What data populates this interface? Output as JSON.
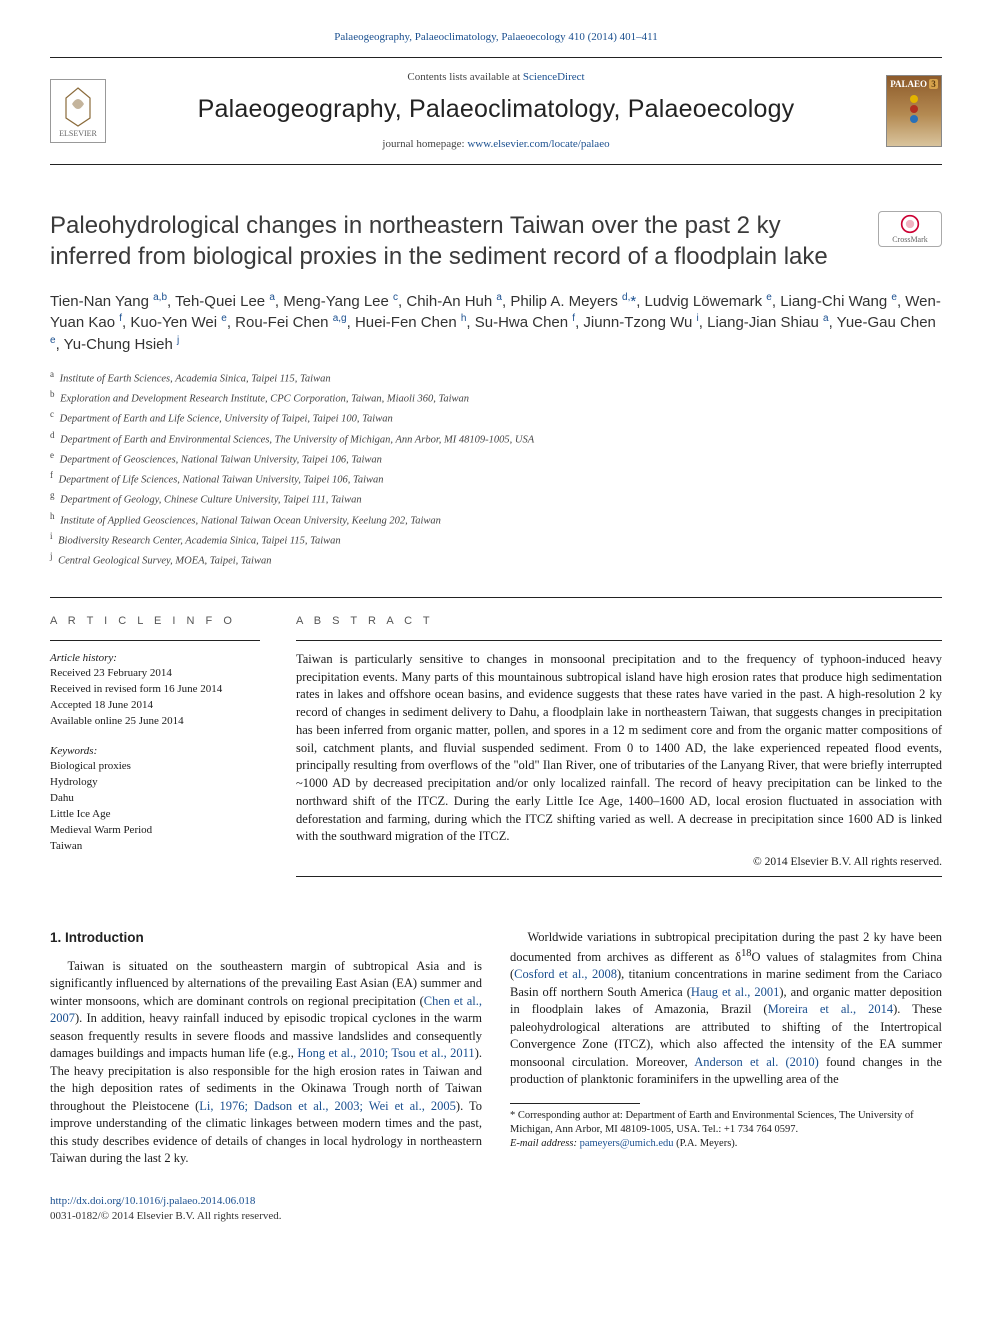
{
  "top_link": {
    "prefix": "",
    "journal": "Palaeogeography, Palaeoclimatology, Palaeoecology 410 (2014) 401–411"
  },
  "header": {
    "contents_label": "Contents lists available at",
    "contents_link": "ScienceDirect",
    "journal_name": "Palaeogeography, Palaeoclimatology, Palaeoecology",
    "home_label": "journal homepage:",
    "home_url": "www.elsevier.com/locate/palaeo",
    "publisher_name": "ELSEVIER",
    "cover_label_top": "PALAEO",
    "cover_label_num": "3",
    "cover_dot_colors": [
      "#e2b400",
      "#b03020",
      "#2970b8"
    ]
  },
  "crossmark_label": "CrossMark",
  "title": "Paleohydrological changes in northeastern Taiwan over the past 2 ky inferred from biological proxies in the sediment record of a floodplain lake",
  "authors_html": "Tien-Nan Yang <sup>a,b</sup>, Teh-Quei Lee <sup>a</sup>, Meng-Yang Lee <sup>c</sup>, Chih-An Huh <sup>a</sup>, Philip A. Meyers <sup>d,</sup><span class='star'>*</span>, Ludvig Löwemark <sup>e</sup>, Liang-Chi Wang <sup>e</sup>, Wen-Yuan Kao <sup>f</sup>, Kuo-Yen Wei <sup>e</sup>, Rou-Fei Chen <sup>a,g</sup>, Huei-Fen Chen <sup>h</sup>, Su-Hwa Chen <sup>f</sup>, Jiunn-Tzong Wu <sup>i</sup>, Liang-Jian Shiau <sup>a</sup>, Yue-Gau Chen <sup>e</sup>, Yu-Chung Hsieh <sup>j</sup>",
  "affiliations": [
    {
      "key": "a",
      "text": "Institute of Earth Sciences, Academia Sinica, Taipei 115, Taiwan"
    },
    {
      "key": "b",
      "text": "Exploration and Development Research Institute, CPC Corporation, Taiwan, Miaoli 360, Taiwan"
    },
    {
      "key": "c",
      "text": "Department of Earth and Life Science, University of Taipei, Taipei 100, Taiwan"
    },
    {
      "key": "d",
      "text": "Department of Earth and Environmental Sciences, The University of Michigan, Ann Arbor, MI 48109-1005, USA"
    },
    {
      "key": "e",
      "text": "Department of Geosciences, National Taiwan University, Taipei 106, Taiwan"
    },
    {
      "key": "f",
      "text": "Department of Life Sciences, National Taiwan University, Taipei 106, Taiwan"
    },
    {
      "key": "g",
      "text": "Department of Geology, Chinese Culture University, Taipei 111, Taiwan"
    },
    {
      "key": "h",
      "text": "Institute of Applied Geosciences, National Taiwan Ocean University, Keelung 202, Taiwan"
    },
    {
      "key": "i",
      "text": "Biodiversity Research Center, Academia Sinica, Taipei 115, Taiwan"
    },
    {
      "key": "j",
      "text": "Central Geological Survey, MOEA, Taipei, Taiwan"
    }
  ],
  "info": {
    "article_info_label": "A R T I C L E  I N F O",
    "abstract_label": "A B S T R A C T",
    "history_label": "Article history:",
    "history": [
      "Received 23 February 2014",
      "Received in revised form 16 June 2014",
      "Accepted 18 June 2014",
      "Available online 25 June 2014"
    ],
    "keywords_label": "Keywords:",
    "keywords": [
      "Biological proxies",
      "Hydrology",
      "Dahu",
      "Little Ice Age",
      "Medieval Warm Period",
      "Taiwan"
    ]
  },
  "abstract": "Taiwan is particularly sensitive to changes in monsoonal precipitation and to the frequency of typhoon-induced heavy precipitation events. Many parts of this mountainous subtropical island have high erosion rates that produce high sedimentation rates in lakes and offshore ocean basins, and evidence suggests that these rates have varied in the past. A high-resolution 2 ky record of changes in sediment delivery to Dahu, a floodplain lake in northeastern Taiwan, that suggests changes in precipitation has been inferred from organic matter, pollen, and spores in a 12 m sediment core and from the organic matter compositions of soil, catchment plants, and fluvial suspended sediment. From 0 to 1400 AD, the lake experienced repeated flood events, principally resulting from overflows of the \"old\" Ilan River, one of tributaries of the Lanyang River, that were briefly interrupted ~1000 AD by decreased precipitation and/or only localized rainfall. The record of heavy precipitation can be linked to the northward shift of the ITCZ. During the early Little Ice Age, 1400–1600 AD, local erosion fluctuated in association with deforestation and farming, during which the ITCZ shifting varied as well. A decrease in precipitation since 1600 AD is linked with the southward migration of the ITCZ.",
  "abstract_copyright": "© 2014 Elsevier B.V. All rights reserved.",
  "section1_heading": "1. Introduction",
  "intro_p1_a": "Taiwan is situated on the southeastern margin of subtropical Asia and is significantly influenced by alternations of the prevailing East Asian (EA) summer and winter monsoons, which are dominant controls on regional precipitation (",
  "intro_p1_ref1": "Chen et al., 2007",
  "intro_p1_b": "). In addition, heavy rainfall induced by episodic tropical cyclones in the warm season frequently results in severe floods and massive landslides and consequently damages buildings and impacts human life (e.g., ",
  "intro_p1_ref2": "Hong et al., 2010; Tsou et al., 2011",
  "intro_p1_c": "). The heavy precipitation is also responsible for the high erosion rates in Taiwan and the high deposition rates of sediments in the ",
  "intro_p1_d": "Okinawa Trough north of Taiwan throughout the Pleistocene (",
  "intro_p1_ref3": "Li, 1976; Dadson et al., 2003; Wei et al., 2005",
  "intro_p1_e": "). To improve understanding of the climatic linkages between modern times and the past, this study describes evidence of details of changes in local hydrology in northeastern Taiwan during the last 2 ky.",
  "intro_p2_a": "Worldwide variations in subtropical precipitation during the past 2 ky have been documented from archives as different as δ",
  "intro_p2_sup": "18",
  "intro_p2_b": "O values of stalagmites from China (",
  "intro_p2_ref1": "Cosford et al., 2008",
  "intro_p2_c": "), titanium concentrations in marine sediment from the Cariaco Basin off northern South America (",
  "intro_p2_ref2": "Haug et al., 2001",
  "intro_p2_d": "), and organic matter deposition in floodplain lakes of Amazonia, Brazil (",
  "intro_p2_ref3": "Moreira et al., 2014",
  "intro_p2_e": "). These paleohydrological alterations are attributed to shifting of the Intertropical Convergence Zone (ITCZ), which also affected the intensity of the EA summer monsoonal circulation. Moreover, ",
  "intro_p2_ref4": "Anderson et al. (2010)",
  "intro_p2_f": " found changes in the production of planktonic foraminifers in the upwelling area of the",
  "footnote": {
    "corr_label": "* Corresponding author at: Department of Earth and Environmental Sciences, The University of Michigan, Ann Arbor, MI 48109-1005, USA. Tel.: +1 734 764 0597.",
    "email_label": "E-mail address:",
    "email": "pameyers@umich.edu",
    "email_who": "(P.A. Meyers)."
  },
  "footer": {
    "doi": "http://dx.doi.org/10.1016/j.palaeo.2014.06.018",
    "issn_line": "0031-0182/© 2014 Elsevier B.V. All rights reserved."
  },
  "colors": {
    "link": "#1a4f8f",
    "text": "#1a1a1a",
    "rule": "#222222"
  }
}
